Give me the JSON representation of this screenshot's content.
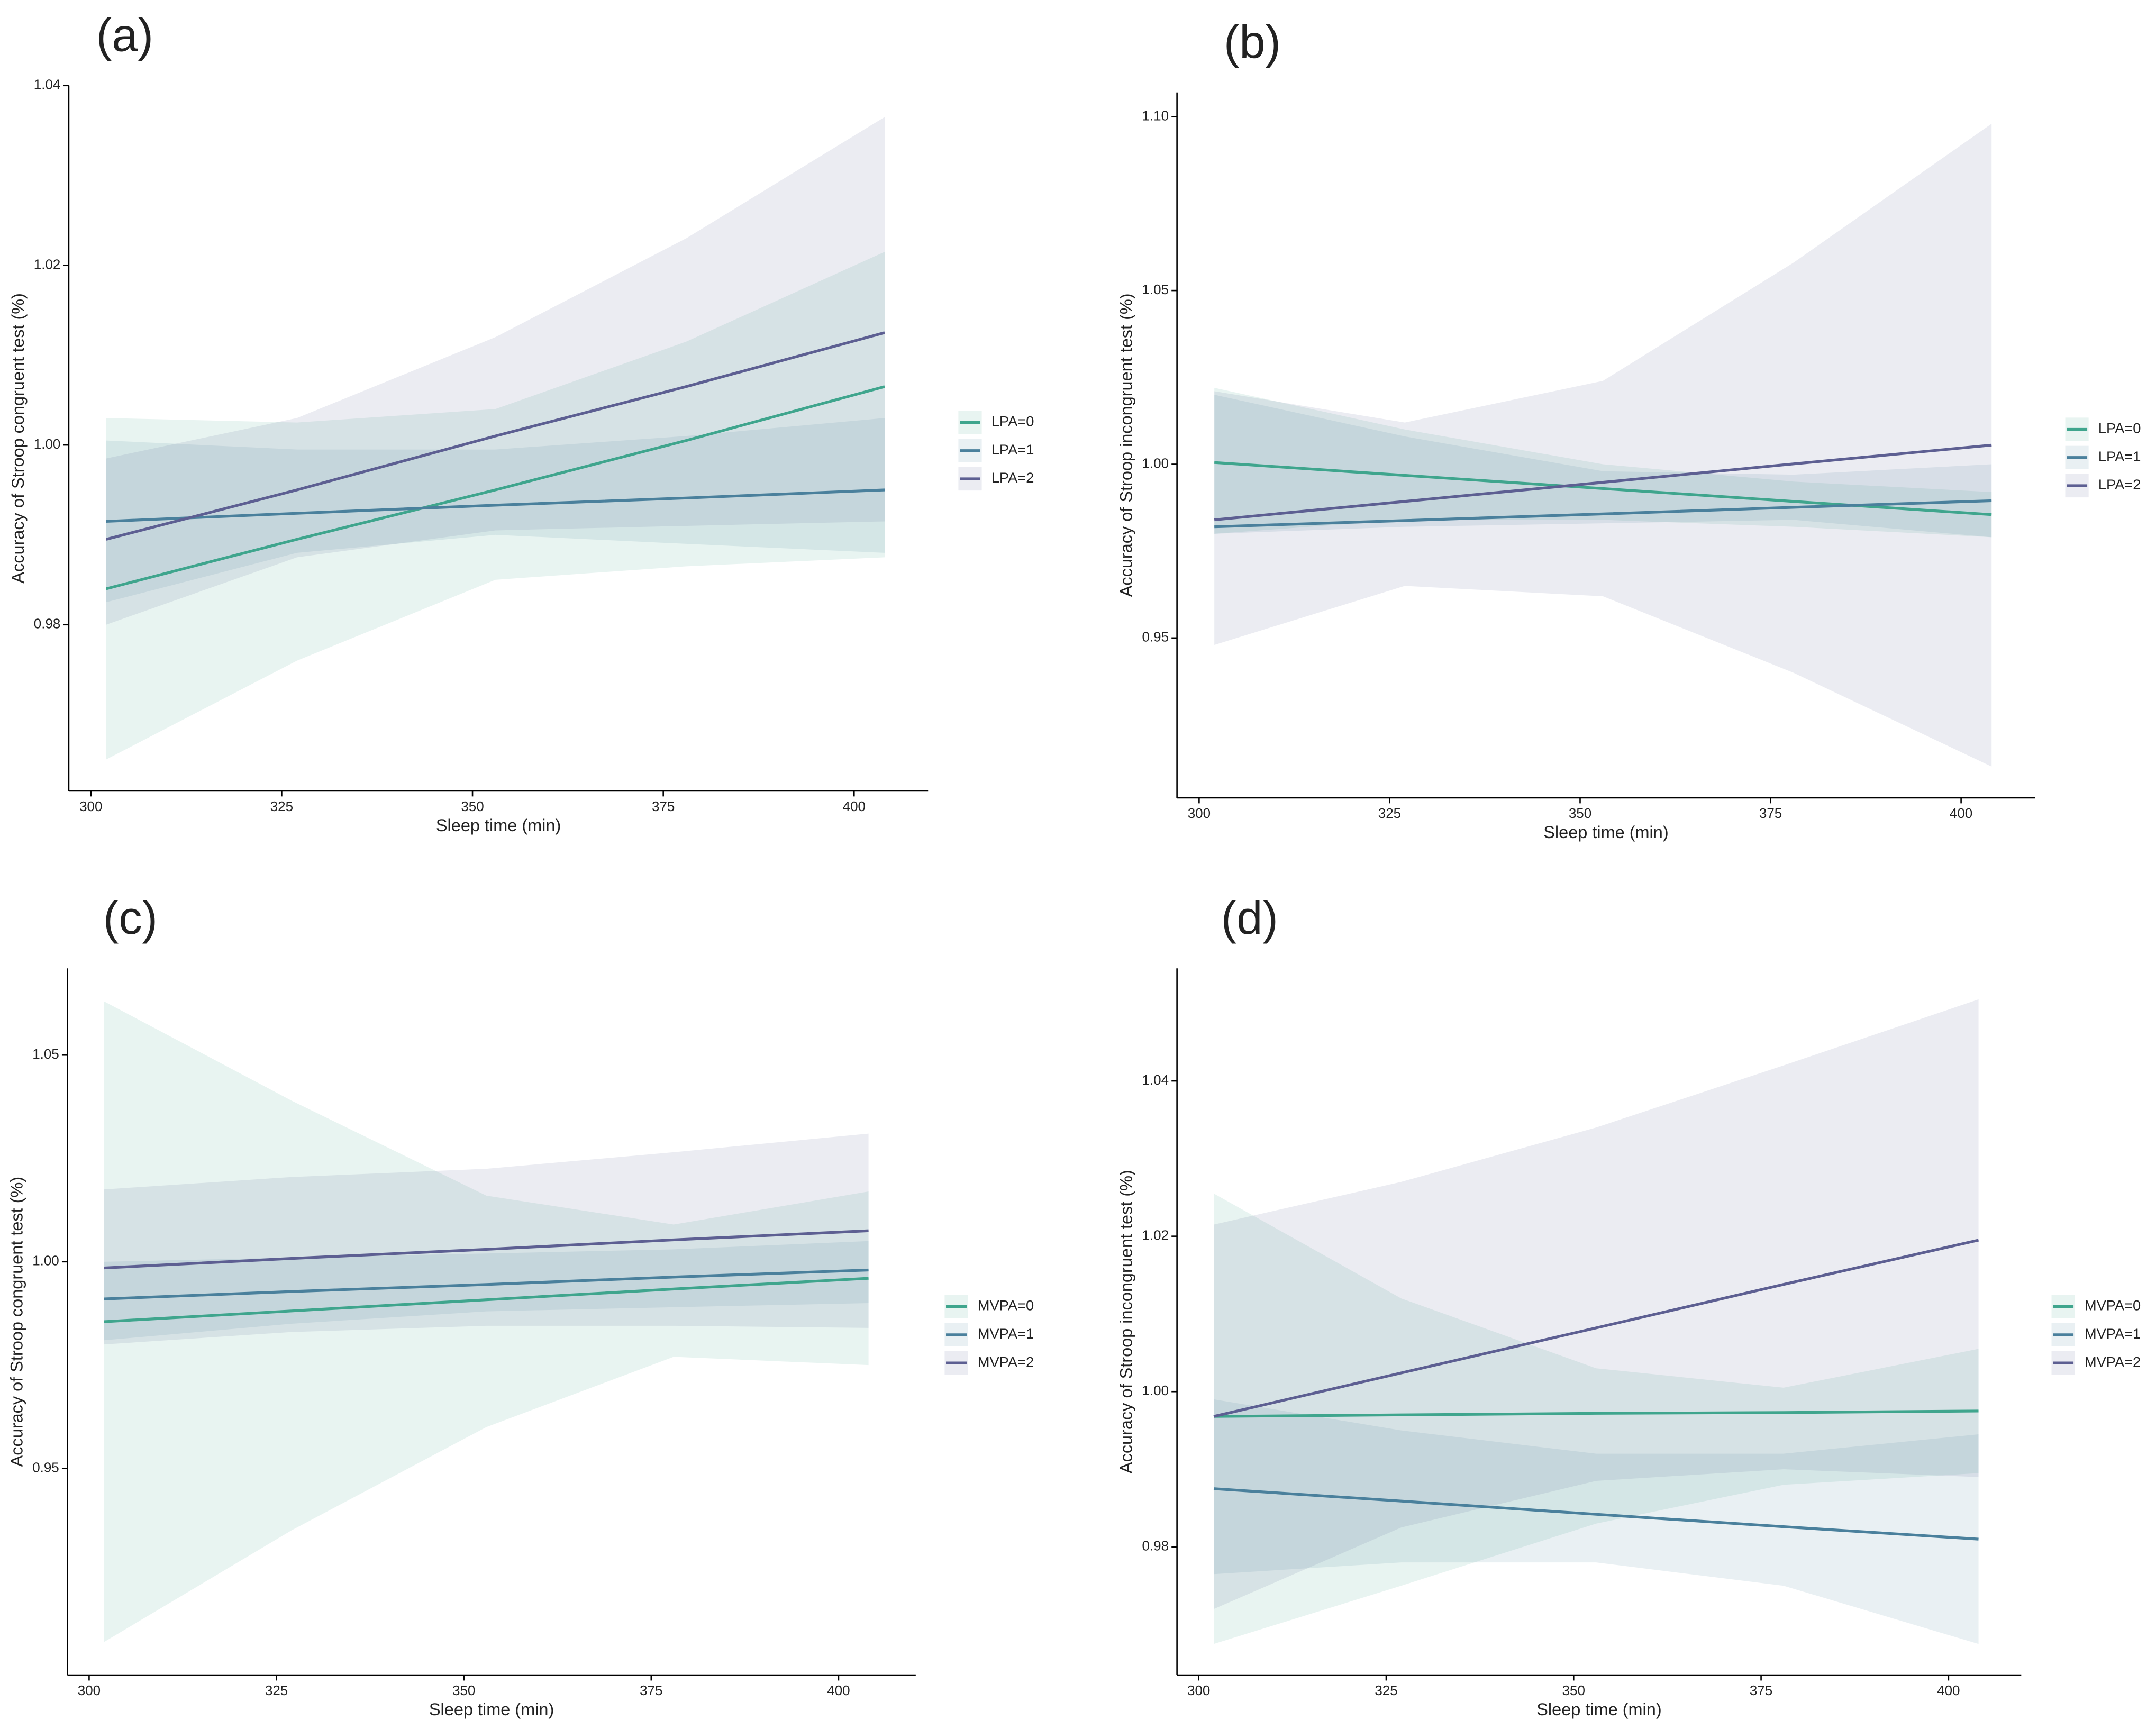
{
  "chart_data": [
    {
      "type": "line",
      "panel_label": "(a)",
      "x_label": "Sleep time (min)",
      "y_label": "Accuracy of Stroop congruent test (%)",
      "xlim": [
        297.1,
        409.7
      ],
      "xticks": [
        300,
        325,
        350,
        375,
        400
      ],
      "ylim": [
        0.9615,
        1.04
      ],
      "yticks": [
        0.98,
        {
          "value": 1,
          "label": "1.00"
        },
        1.02,
        1.04
      ],
      "x": [
        302,
        327,
        353,
        378,
        404
      ],
      "series": [
        {
          "name": "LPA=0",
          "color": "#3fa58d",
          "values": [
            0.984,
            0.9895,
            0.995,
            1.0005,
            1.0065
          ],
          "lower": [
            0.965,
            0.976,
            0.985,
            0.9865,
            0.9875
          ],
          "upper": [
            1.003,
            1.0025,
            1.004,
            1.0115,
            1.0215
          ]
        },
        {
          "name": "LPA=1",
          "color": "#4a809c",
          "values": [
            0.9915,
            0.9924,
            0.9933,
            0.9941,
            0.995
          ],
          "lower": [
            0.9825,
            0.988,
            0.99,
            0.989,
            0.988
          ],
          "upper": [
            1.0005,
            0.9995,
            0.9995,
            1.001,
            1.003
          ]
        },
        {
          "name": "LPA=2",
          "color": "#5d5f92",
          "values": [
            0.9895,
            0.995,
            1.001,
            1.0065,
            1.0125
          ],
          "lower": [
            0.98,
            0.9875,
            0.9905,
            0.991,
            0.9915
          ],
          "upper": [
            0.9985,
            1.003,
            1.012,
            1.023,
            1.0365
          ]
        }
      ]
    },
    {
      "type": "line",
      "panel_label": "(b)",
      "x_label": "Sleep time (min)",
      "y_label": "Accuracy of Stroop incongruent test (%)",
      "xlim": [
        297.1,
        409.7
      ],
      "xticks": [
        300,
        325,
        350,
        375,
        400
      ],
      "ylim": [
        0.904,
        1.107
      ],
      "yticks": [
        0.95,
        {
          "value": 1,
          "label": "1.00"
        },
        1.05,
        {
          "value": 1.1,
          "label": "1.10"
        }
      ],
      "x": [
        302,
        327,
        353,
        378,
        404
      ],
      "series": [
        {
          "name": "LPA=0",
          "color": "#3fa58d",
          "values": [
            1.0005,
            0.9968,
            0.993,
            0.9893,
            0.9855
          ],
          "lower": [
            0.98,
            0.984,
            0.984,
            0.982,
            0.979
          ],
          "upper": [
            1.022,
            1.01,
            1.0,
            0.995,
            0.992
          ]
        },
        {
          "name": "LPA=1",
          "color": "#4a809c",
          "values": [
            0.982,
            0.9838,
            0.9857,
            0.9876,
            0.9895
          ],
          "lower": [
            0.98,
            0.982,
            0.983,
            0.984,
            0.979
          ],
          "upper": [
            1.02,
            1.008,
            0.998,
            0.997,
            1.0
          ]
        },
        {
          "name": "LPA=2",
          "color": "#5d5f92",
          "values": [
            0.984,
            0.9893,
            0.9948,
            1.0001,
            1.0055
          ],
          "lower": [
            0.948,
            0.965,
            0.962,
            0.94,
            0.913
          ],
          "upper": [
            1.021,
            1.012,
            1.024,
            1.058,
            1.098
          ]
        }
      ]
    },
    {
      "type": "line",
      "panel_label": "(c)",
      "x_label": "Sleep time (min)",
      "y_label": "Accuracy of Stroop congruent test (%)",
      "xlim": [
        297.1,
        410.3
      ],
      "xticks": [
        300,
        325,
        350,
        375,
        400
      ],
      "ylim": [
        0.9,
        1.071
      ],
      "yticks": [
        0.95,
        {
          "value": 1,
          "label": "1.00"
        },
        1.05
      ],
      "x": [
        302,
        327,
        353,
        378,
        404
      ],
      "series": [
        {
          "name": "MVPA=0",
          "color": "#3fa58d",
          "values": [
            0.9855,
            0.9881,
            0.9908,
            0.9934,
            0.996
          ],
          "lower": [
            0.908,
            0.935,
            0.96,
            0.977,
            0.975
          ],
          "upper": [
            1.063,
            1.039,
            1.016,
            1.009,
            1.017
          ]
        },
        {
          "name": "MVPA=1",
          "color": "#4a809c",
          "values": [
            0.991,
            0.9928,
            0.9945,
            0.9963,
            0.998
          ],
          "lower": [
            0.981,
            0.985,
            0.988,
            0.989,
            0.99
          ],
          "upper": [
            1.0,
            1.001,
            1.002,
            1.003,
            1.005
          ]
        },
        {
          "name": "MVPA=2",
          "color": "#5d5f92",
          "values": [
            0.9985,
            1.0008,
            1.003,
            1.0053,
            1.0075
          ],
          "lower": [
            0.98,
            0.983,
            0.9845,
            0.9845,
            0.984
          ],
          "upper": [
            1.0175,
            1.0205,
            1.0225,
            1.0265,
            1.031
          ]
        }
      ]
    },
    {
      "type": "line",
      "panel_label": "(d)",
      "x_label": "Sleep time (min)",
      "y_label": "Accuracy of Stroop incongruent test (%)",
      "xlim": [
        297.1,
        409.7
      ],
      "xticks": [
        300,
        325,
        350,
        375,
        400
      ],
      "ylim": [
        0.9635,
        1.0545
      ],
      "yticks": [
        0.98,
        {
          "value": 1,
          "label": "1.00"
        },
        1.02,
        1.04
      ],
      "x": [
        302,
        327,
        353,
        378,
        404
      ],
      "series": [
        {
          "name": "MVPA=0",
          "color": "#3fa58d",
          "values": [
            0.9968,
            0.997,
            0.9972,
            0.9973,
            0.9975
          ],
          "lower": [
            0.9675,
            0.975,
            0.983,
            0.988,
            0.9895
          ],
          "upper": [
            1.0255,
            1.012,
            1.003,
            1.0005,
            1.0055
          ]
        },
        {
          "name": "MVPA=1",
          "color": "#4a809c",
          "values": [
            0.9875,
            0.9859,
            0.9842,
            0.9826,
            0.981
          ],
          "lower": [
            0.9765,
            0.978,
            0.978,
            0.975,
            0.9675
          ],
          "upper": [
            0.999,
            0.995,
            0.992,
            0.992,
            0.9945
          ]
        },
        {
          "name": "MVPA=2",
          "color": "#5d5f92",
          "values": [
            0.9968,
            1.0024,
            1.0082,
            1.0138,
            1.0195
          ],
          "lower": [
            0.972,
            0.9825,
            0.9885,
            0.99,
            0.989
          ],
          "upper": [
            1.0215,
            1.027,
            1.034,
            1.042,
            1.0505
          ]
        }
      ]
    }
  ]
}
